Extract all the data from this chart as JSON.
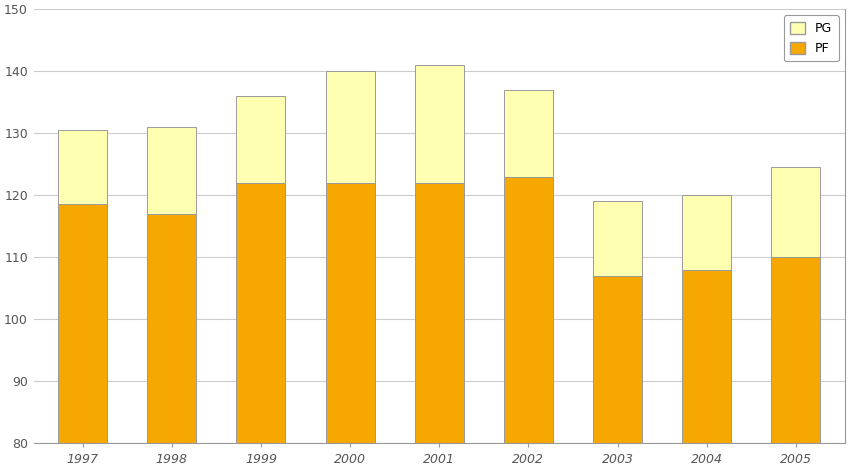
{
  "years": [
    "1997",
    "1998",
    "1999",
    "2000",
    "2001",
    "2002",
    "2003",
    "2004",
    "2005"
  ],
  "PF": [
    118.5,
    117.0,
    122.0,
    122.0,
    122.0,
    123.0,
    107.0,
    108.0,
    110.0
  ],
  "total": [
    130.5,
    131.0,
    136.0,
    140.0,
    141.0,
    137.0,
    119.0,
    120.0,
    124.5
  ],
  "pf_color": "#F7A800",
  "pg_color": "#FFFFB2",
  "bg_color": "#FFFFFF",
  "ylim_min": 80,
  "ylim_max": 150,
  "yticks": [
    80,
    90,
    100,
    110,
    120,
    130,
    140,
    150
  ],
  "bar_width": 0.55,
  "edge_color": "#999999",
  "grid_color": "#CCCCCC",
  "tick_color": "#555555",
  "spine_color": "#999999"
}
